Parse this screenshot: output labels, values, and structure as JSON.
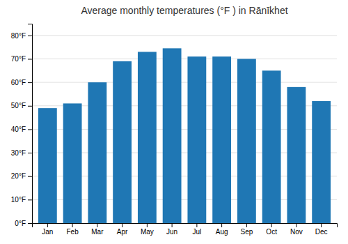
{
  "chart_data": {
    "type": "bar",
    "title": "Average monthly temperatures (°F ) in Rānīkhet",
    "categories": [
      "Jan",
      "Feb",
      "Mar",
      "Apr",
      "May",
      "Jun",
      "Jul",
      "Aug",
      "Sep",
      "Oct",
      "Nov",
      "Dec"
    ],
    "values": [
      49,
      51,
      60,
      69,
      73,
      74.5,
      71,
      71,
      70,
      65,
      58,
      52
    ],
    "ylim": [
      0,
      85
    ],
    "yticks": [
      {
        "value": 0,
        "label": "0°F"
      },
      {
        "value": 10,
        "label": "10°F"
      },
      {
        "value": 20,
        "label": "20°F"
      },
      {
        "value": 30,
        "label": "30°F"
      },
      {
        "value": 40,
        "label": "40°F"
      },
      {
        "value": 50,
        "label": "50°F"
      },
      {
        "value": 60,
        "label": "60°F"
      },
      {
        "value": 70,
        "label": "70°F"
      },
      {
        "value": 80,
        "label": "80°F"
      }
    ],
    "grid": true
  }
}
